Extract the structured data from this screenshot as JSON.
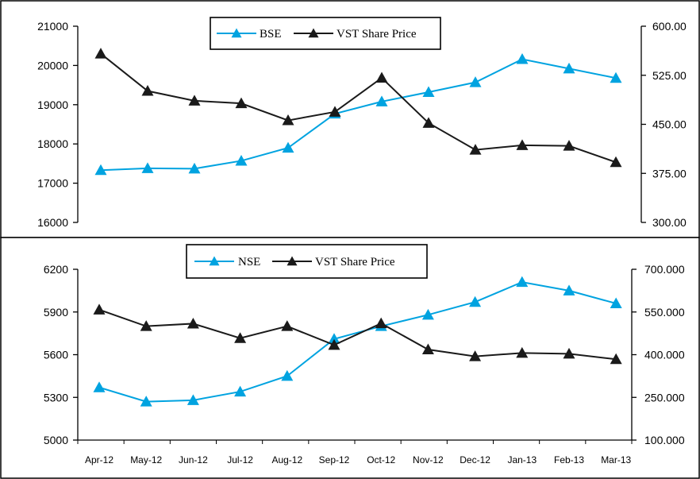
{
  "chart_data": [
    {
      "type": "line",
      "categories": [
        "Apr-12",
        "May-12",
        "Jun-12",
        "Jul-12",
        "Aug-12",
        "Sep-12",
        "Oct-12",
        "Nov-12",
        "Dec-12",
        "Jan-13",
        "Feb-13",
        "Mar-13"
      ],
      "series": [
        {
          "name": "BSE",
          "axis": "left",
          "color": "#00a3e0",
          "marker": "triangle",
          "values": [
            17330,
            17380,
            17370,
            17570,
            17900,
            18770,
            19080,
            19320,
            19570,
            20160,
            19920,
            19680
          ]
        },
        {
          "name": "VST Share Price",
          "axis": "right",
          "color": "#1a1a1a",
          "marker": "triangle",
          "values": [
            558,
            501,
            486,
            482,
            456,
            469,
            521,
            452,
            411,
            418,
            417,
            392
          ]
        }
      ],
      "y_left": {
        "ylim": [
          16000,
          21000
        ],
        "ticks": [
          "16000",
          "17000",
          "18000",
          "19000",
          "20000",
          "21000"
        ],
        "tick_values": [
          16000,
          17000,
          18000,
          19000,
          20000,
          21000
        ]
      },
      "y_right": {
        "ylim": [
          300,
          600
        ],
        "ticks": [
          "300.00",
          "375.00",
          "450.00",
          "525.00",
          "600.00"
        ],
        "tick_values": [
          300,
          375,
          450,
          525,
          600
        ]
      },
      "legend_position": "top-center",
      "grid": false
    },
    {
      "type": "line",
      "categories": [
        "Apr-12",
        "May-12",
        "Jun-12",
        "Jul-12",
        "Aug-12",
        "Sep-12",
        "Oct-12",
        "Nov-12",
        "Dec-12",
        "Jan-13",
        "Feb-13",
        "Mar-13"
      ],
      "x_tick_labels": [
        "Apr-12",
        "May-12",
        "Jun-12",
        "Jul-12",
        "Aug-12",
        "Sep-12",
        "Oct-12",
        "Nov-12",
        "Dec-12",
        "Jan-13",
        "Feb-13",
        "Mar-13"
      ],
      "series": [
        {
          "name": "NSE",
          "axis": "left",
          "color": "#00a3e0",
          "marker": "triangle",
          "values": [
            5370,
            5270,
            5280,
            5340,
            5450,
            5710,
            5800,
            5880,
            5970,
            6110,
            6050,
            5960
          ]
        },
        {
          "name": "VST Share Price",
          "axis": "right",
          "color": "#1a1a1a",
          "marker": "triangle",
          "values": [
            558,
            500,
            509,
            458,
            500,
            434,
            510,
            418,
            394,
            406,
            403,
            384
          ]
        }
      ],
      "y_left": {
        "ylim": [
          5000,
          6200
        ],
        "ticks": [
          "5000",
          "5300",
          "5600",
          "5900",
          "6200"
        ],
        "tick_values": [
          5000,
          5300,
          5600,
          5900,
          6200
        ]
      },
      "y_right": {
        "ylim": [
          100,
          700
        ],
        "ticks": [
          "100.000",
          "250.000",
          "400.000",
          "550.000",
          "700.000"
        ],
        "tick_values": [
          100,
          250,
          400,
          550,
          700
        ]
      },
      "legend_position": "top-center",
      "grid": false
    }
  ]
}
